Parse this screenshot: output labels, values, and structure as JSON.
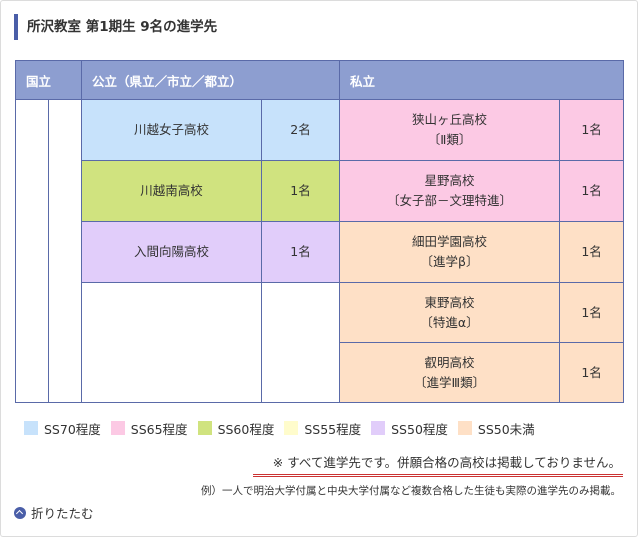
{
  "title": "所沢教室 第1期生 9名の進学先",
  "table": {
    "headers": {
      "kokuritsu": "国立",
      "public": "公立（県立／市立／都立）",
      "private": "私立"
    },
    "public_rows": [
      {
        "name": "川越女子高校",
        "count": "2名",
        "color": "ss70"
      },
      {
        "name": "川越南高校",
        "count": "1名",
        "color": "ss60"
      },
      {
        "name": "入間向陽高校",
        "count": "1名",
        "color": "ss50"
      }
    ],
    "private_rows": [
      {
        "name": "狭山ヶ丘高校",
        "sub": "〔Ⅱ類〕",
        "count": "1名",
        "color": "ss65"
      },
      {
        "name": "星野高校",
        "sub": "〔女子部－文理特進〕",
        "count": "1名",
        "color": "ss65"
      },
      {
        "name": "細田学園高校",
        "sub": "〔進学β〕",
        "count": "1名",
        "color": "ss50u"
      },
      {
        "name": "東野高校",
        "sub": "〔特進α〕",
        "count": "1名",
        "color": "ss50u"
      },
      {
        "name": "叡明高校",
        "sub": "〔進学Ⅲ類〕",
        "count": "1名",
        "color": "ss50u"
      }
    ]
  },
  "legend": [
    {
      "label": "SS70程度",
      "color": "#c7e2fb"
    },
    {
      "label": "SS65程度",
      "color": "#fcc9e4"
    },
    {
      "label": "SS60程度",
      "color": "#d0e37f"
    },
    {
      "label": "SS55程度",
      "color": "#fffccc"
    },
    {
      "label": "SS50程度",
      "color": "#e1cdfa"
    },
    {
      "label": "SS50未満",
      "color": "#fee0c6"
    }
  ],
  "notes": {
    "main": "※ すべて進学先です。併願合格の高校は掲載しておりません。",
    "example": "例）一人で明治大学付属と中央大学付属など複数合格した生徒も実際の進学先のみ掲載。"
  },
  "fold_label": "折りたたむ",
  "colors": {
    "accent": "#4a5ea8",
    "header_bg": "#8d9ed0",
    "underline": "#cc3333"
  }
}
